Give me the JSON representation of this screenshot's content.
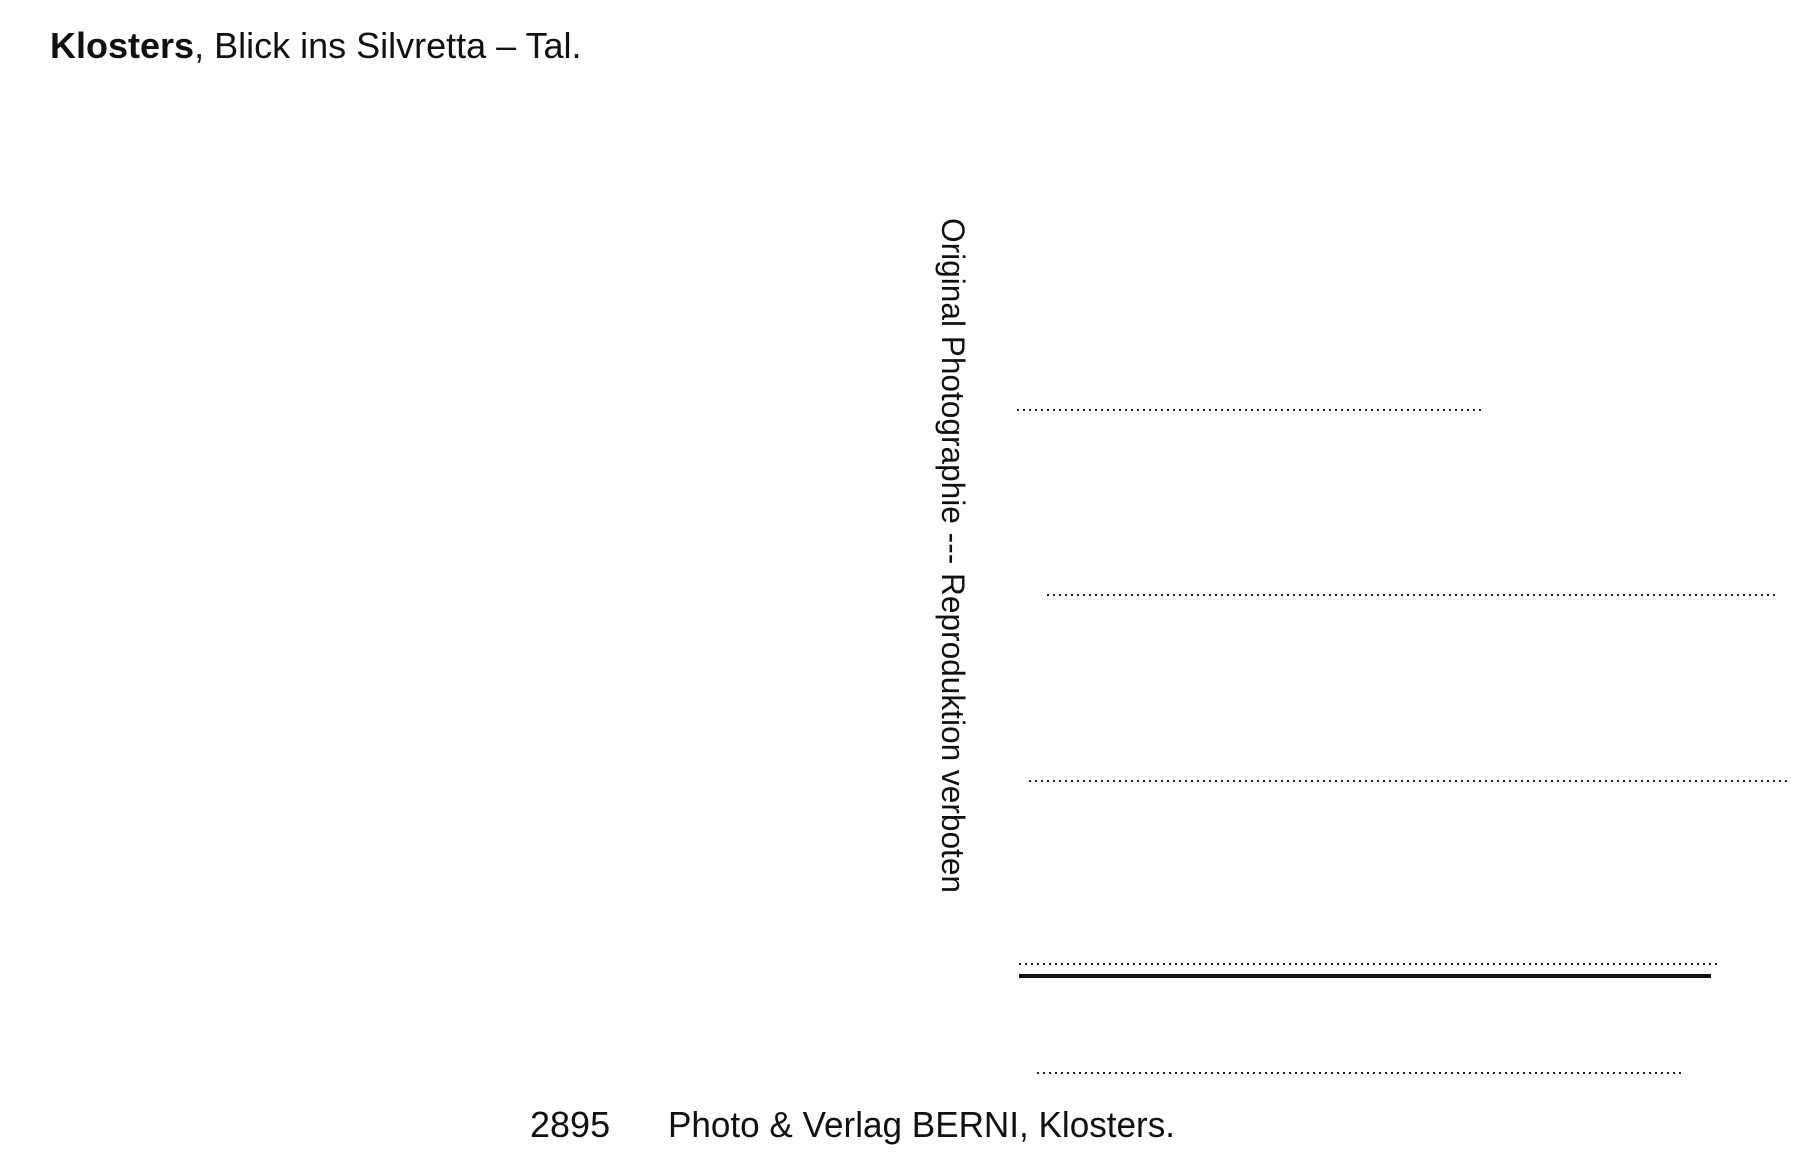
{
  "header": {
    "place": "Klosters",
    "caption": ", Blick ins Silvretta – Tal."
  },
  "side_note": "Original Photographie --- Reproduktion verboten",
  "footer": {
    "number": "2895",
    "publisher": "Photo & Verlag BERNI, Klosters."
  }
}
